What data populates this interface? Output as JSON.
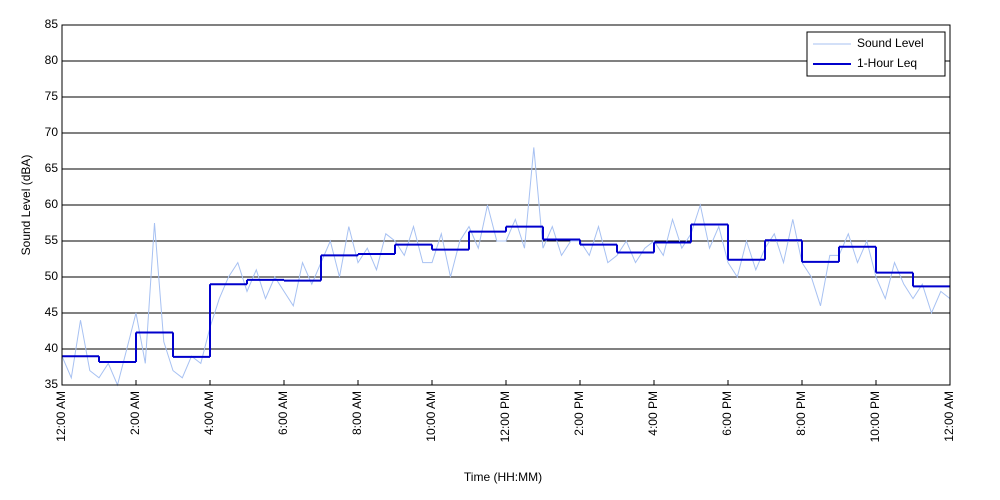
{
  "chart_data": {
    "type": "line",
    "xlabel": "Time (HH:MM)",
    "ylabel": "Sound Level (dBA)",
    "xlim": [
      0,
      24
    ],
    "ylim": [
      35,
      85
    ],
    "xticks": [
      {
        "value": 0,
        "label": "12:00 AM"
      },
      {
        "value": 2,
        "label": "2:00 AM"
      },
      {
        "value": 4,
        "label": "4:00 AM"
      },
      {
        "value": 6,
        "label": "6:00 AM"
      },
      {
        "value": 8,
        "label": "8:00 AM"
      },
      {
        "value": 10,
        "label": "10:00 AM"
      },
      {
        "value": 12,
        "label": "12:00 PM"
      },
      {
        "value": 14,
        "label": "2:00 PM"
      },
      {
        "value": 16,
        "label": "4:00 PM"
      },
      {
        "value": 18,
        "label": "6:00 PM"
      },
      {
        "value": 20,
        "label": "8:00 PM"
      },
      {
        "value": 22,
        "label": "10:00 PM"
      },
      {
        "value": 24,
        "label": "12:00 AM"
      }
    ],
    "yticks": [
      35,
      40,
      45,
      50,
      55,
      60,
      65,
      70,
      75,
      80,
      85
    ],
    "grid": true,
    "legend": "upper right",
    "series": [
      {
        "name": "Sound Level",
        "color": "#a7c1f2",
        "style": "line",
        "x": [
          0,
          0.25,
          0.5,
          0.75,
          1,
          1.25,
          1.5,
          1.75,
          2,
          2.25,
          2.5,
          2.75,
          3,
          3.25,
          3.5,
          3.75,
          4,
          4.25,
          4.5,
          4.75,
          5,
          5.25,
          5.5,
          5.75,
          6,
          6.25,
          6.5,
          6.75,
          7,
          7.25,
          7.5,
          7.75,
          8,
          8.25,
          8.5,
          8.75,
          9,
          9.25,
          9.5,
          9.75,
          10,
          10.25,
          10.5,
          10.75,
          11,
          11.25,
          11.5,
          11.75,
          12,
          12.25,
          12.5,
          12.75,
          13,
          13.25,
          13.5,
          13.75,
          14,
          14.25,
          14.5,
          14.75,
          15,
          15.25,
          15.5,
          15.75,
          16,
          16.25,
          16.5,
          16.75,
          17,
          17.25,
          17.5,
          17.75,
          18,
          18.25,
          18.5,
          18.75,
          19,
          19.25,
          19.5,
          19.75,
          20,
          20.25,
          20.5,
          20.75,
          21,
          21.25,
          21.5,
          21.75,
          22,
          22.25,
          22.5,
          22.75,
          23,
          23.25,
          23.5,
          23.75,
          24
        ],
        "values": [
          39,
          36,
          44,
          37,
          36,
          38,
          35,
          40,
          45,
          38,
          57.5,
          41,
          37,
          36,
          39,
          38,
          43,
          47,
          50,
          52,
          48,
          51,
          47,
          50,
          48,
          46,
          52,
          49,
          52,
          55,
          50,
          57,
          52,
          54,
          51,
          56,
          55,
          53,
          57,
          52,
          52,
          56,
          50,
          55,
          57,
          54,
          60,
          55,
          55,
          58,
          54,
          68,
          54,
          57,
          53,
          55,
          55,
          53,
          57,
          52,
          53,
          55,
          52,
          54,
          55,
          53,
          58,
          54,
          56,
          60,
          54,
          57,
          52,
          50,
          55,
          51,
          54,
          56,
          52,
          58,
          52,
          50,
          46,
          53,
          53,
          56,
          52,
          55,
          50,
          47,
          52,
          49,
          47,
          49,
          45,
          48,
          47
        ]
      },
      {
        "name": "1-Hour Leq",
        "color": "#0000cc",
        "style": "step",
        "x": [
          0,
          1,
          2,
          3,
          4,
          5,
          6,
          7,
          8,
          9,
          10,
          11,
          12,
          13,
          14,
          15,
          16,
          17,
          18,
          19,
          20,
          21,
          22,
          23
        ],
        "values": [
          39,
          38.2,
          42.3,
          38.9,
          49,
          49.6,
          49.5,
          53,
          53.2,
          54.5,
          53.8,
          56.3,
          57,
          55.2,
          54.5,
          53.4,
          54.8,
          57.3,
          52.4,
          55.1,
          52.1,
          54.2,
          50.6,
          48.7
        ]
      }
    ]
  }
}
